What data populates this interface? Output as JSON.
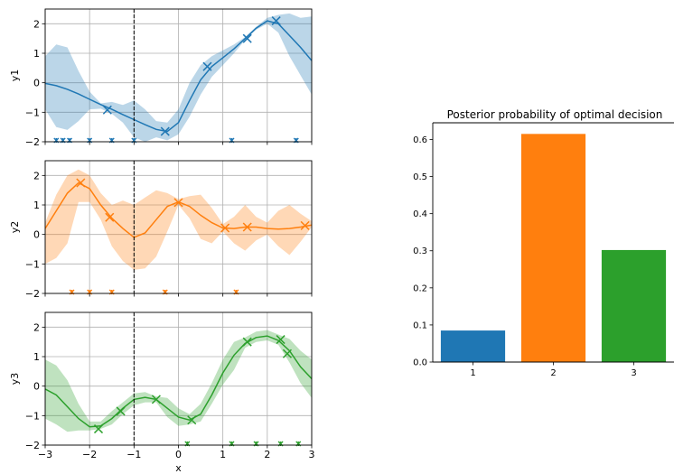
{
  "colors": {
    "blue": "#1f77b4",
    "orange": "#ff7f0e",
    "green": "#2ca02c",
    "axis": "#000000",
    "grid": "#b0b0b0"
  },
  "chart_data": [
    {
      "type": "line",
      "panel": "gp-1",
      "ylabel": "y1",
      "xlabel": "",
      "xlim": [
        -3,
        3
      ],
      "ylim": [
        -2,
        2.5
      ],
      "xticks": [
        -3,
        -2,
        -1,
        0,
        1,
        2,
        3
      ],
      "yticks": [
        -2,
        -1,
        0,
        1,
        2
      ],
      "xtick_labels": [
        "",
        "",
        "",
        "",
        "",
        "",
        ""
      ],
      "ytick_labels": [
        "−2",
        "−1",
        "0",
        "1",
        "2"
      ],
      "grid": true,
      "vline_x": -1,
      "color": "#1f77b4",
      "mean": {
        "x": [
          -3,
          -2.75,
          -2.5,
          -2.25,
          -2,
          -1.75,
          -1.5,
          -1.25,
          -1,
          -0.75,
          -0.5,
          -0.25,
          0,
          0.25,
          0.5,
          0.75,
          1,
          1.25,
          1.5,
          1.75,
          2,
          2.25,
          2.5,
          2.75,
          3
        ],
        "y": [
          -0.02,
          -0.1,
          -0.22,
          -0.38,
          -0.56,
          -0.74,
          -0.9,
          -1.08,
          -1.25,
          -1.42,
          -1.58,
          -1.65,
          -1.35,
          -0.6,
          0.1,
          0.55,
          0.85,
          1.15,
          1.5,
          1.85,
          2.1,
          2.0,
          1.6,
          1.2,
          0.75
        ]
      },
      "upper": [
        0.9,
        1.3,
        1.2,
        0.4,
        -0.3,
        -0.7,
        -0.65,
        -0.75,
        -0.6,
        -0.9,
        -1.3,
        -1.35,
        -0.9,
        0.0,
        0.6,
        0.9,
        1.1,
        1.3,
        1.55,
        1.9,
        2.2,
        2.3,
        2.35,
        2.2,
        2.25
      ],
      "lower": [
        -0.9,
        -1.5,
        -1.6,
        -1.3,
        -0.9,
        -0.88,
        -1.05,
        -1.35,
        -1.85,
        -2.0,
        -1.85,
        -1.95,
        -1.75,
        -1.15,
        -0.4,
        0.2,
        0.6,
        1.0,
        1.45,
        1.8,
        2.0,
        1.7,
        0.9,
        0.25,
        -0.4
      ],
      "observations": {
        "x": [
          -1.6,
          -0.3,
          0.65,
          1.55,
          2.2
        ],
        "y": [
          -0.92,
          -1.65,
          0.55,
          1.5,
          2.1
        ]
      },
      "rug_x": [
        -2.75,
        -2.6,
        -2.45,
        -2.0,
        -1.5,
        -1.0,
        1.2,
        2.65
      ]
    },
    {
      "type": "line",
      "panel": "gp-2",
      "ylabel": "y2",
      "xlabel": "",
      "xlim": [
        -3,
        3
      ],
      "ylim": [
        -2,
        2.5
      ],
      "xticks": [
        -3,
        -2,
        -1,
        0,
        1,
        2,
        3
      ],
      "yticks": [
        -2,
        -1,
        0,
        1,
        2
      ],
      "xtick_labels": [
        "",
        "",
        "",
        "",
        "",
        "",
        ""
      ],
      "ytick_labels": [
        "−2",
        "−1",
        "0",
        "1",
        "2"
      ],
      "grid": true,
      "vline_x": -1,
      "color": "#ff7f0e",
      "mean": {
        "x": [
          -3,
          -2.75,
          -2.5,
          -2.25,
          -2,
          -1.75,
          -1.5,
          -1.25,
          -1,
          -0.75,
          -0.5,
          -0.25,
          0,
          0.25,
          0.5,
          0.75,
          1,
          1.25,
          1.5,
          1.75,
          2,
          2.25,
          2.5,
          2.75,
          3
        ],
        "y": [
          0.2,
          0.8,
          1.4,
          1.75,
          1.55,
          1.0,
          0.55,
          0.2,
          -0.1,
          0.05,
          0.5,
          0.95,
          1.1,
          0.95,
          0.65,
          0.4,
          0.22,
          0.2,
          0.25,
          0.25,
          0.2,
          0.18,
          0.2,
          0.25,
          0.32
        ]
      },
      "upper": [
        0.4,
        1.35,
        2.0,
        2.2,
        2.0,
        1.4,
        1.0,
        1.15,
        1.0,
        1.25,
        1.5,
        1.4,
        1.2,
        1.3,
        1.35,
        0.9,
        0.35,
        0.6,
        1.0,
        0.6,
        0.4,
        0.8,
        1.0,
        0.7,
        0.45
      ],
      "lower": [
        -1.0,
        -0.8,
        -0.3,
        1.1,
        1.1,
        0.5,
        -0.4,
        -0.9,
        -1.2,
        -1.15,
        -0.75,
        0.1,
        1.0,
        0.55,
        -0.15,
        -0.3,
        0.1,
        -0.3,
        -0.55,
        -0.2,
        0.0,
        -0.4,
        -0.7,
        -0.25,
        0.25
      ],
      "observations": {
        "x": [
          -2.2,
          -1.55,
          0.0,
          1.05,
          1.55,
          2.85
        ],
        "y": [
          1.75,
          0.58,
          1.08,
          0.22,
          0.25,
          0.3
        ]
      },
      "rug_x": [
        -2.4,
        -2.0,
        -1.5,
        -0.3,
        1.3
      ]
    },
    {
      "type": "line",
      "panel": "gp-3",
      "ylabel": "y3",
      "xlabel": "x",
      "xlim": [
        -3,
        3
      ],
      "ylim": [
        -2,
        2.5
      ],
      "xticks": [
        -3,
        -2,
        -1,
        0,
        1,
        2,
        3
      ],
      "yticks": [
        -2,
        -1,
        0,
        1,
        2
      ],
      "xtick_labels": [
        "−3",
        "−2",
        "−1",
        "0",
        "1",
        "2",
        "3"
      ],
      "ytick_labels": [
        "−2",
        "−1",
        "0",
        "1",
        "2"
      ],
      "grid": true,
      "vline_x": -1,
      "color": "#2ca02c",
      "mean": {
        "x": [
          -3,
          -2.75,
          -2.5,
          -2.25,
          -2,
          -1.75,
          -1.5,
          -1.25,
          -1,
          -0.75,
          -0.5,
          -0.25,
          0,
          0.25,
          0.5,
          0.75,
          1,
          1.25,
          1.5,
          1.75,
          2,
          2.25,
          2.5,
          2.75,
          3
        ],
        "y": [
          -0.1,
          -0.3,
          -0.7,
          -1.1,
          -1.38,
          -1.35,
          -1.1,
          -0.75,
          -0.45,
          -0.38,
          -0.45,
          -0.75,
          -1.05,
          -1.15,
          -0.95,
          -0.3,
          0.45,
          1.05,
          1.45,
          1.65,
          1.7,
          1.55,
          1.2,
          0.65,
          0.25
        ]
      },
      "upper": [
        0.9,
        0.7,
        0.2,
        -0.6,
        -1.2,
        -1.2,
        -0.85,
        -0.55,
        -0.25,
        -0.2,
        -0.35,
        -0.4,
        -0.75,
        -0.95,
        -0.6,
        0.1,
        0.9,
        1.5,
        1.65,
        1.85,
        1.9,
        1.75,
        1.6,
        1.2,
        0.9
      ],
      "lower": [
        -1.1,
        -1.3,
        -1.55,
        -1.5,
        -1.5,
        -1.45,
        -1.3,
        -0.95,
        -0.65,
        -0.55,
        -0.55,
        -1.05,
        -1.35,
        -1.3,
        -1.2,
        -0.6,
        0.05,
        0.55,
        1.3,
        1.5,
        1.55,
        1.4,
        0.8,
        0.1,
        -0.4
      ],
      "observations": {
        "x": [
          -1.8,
          -1.3,
          -0.5,
          0.3,
          1.55,
          2.3,
          2.45
        ],
        "y": [
          -1.45,
          -0.85,
          -0.45,
          -1.15,
          1.5,
          1.58,
          1.1
        ]
      },
      "rug_x": [
        0.2,
        1.2,
        1.75,
        2.3,
        2.7
      ]
    },
    {
      "type": "bar",
      "panel": "posterior-bar",
      "title": "Posterior probability of optimal decision",
      "categories": [
        "1",
        "2",
        "3"
      ],
      "values": [
        0.085,
        0.615,
        0.302
      ],
      "colors": [
        "#1f77b4",
        "#ff7f0e",
        "#2ca02c"
      ],
      "ylim": [
        0,
        0.645
      ],
      "yticks": [
        0.0,
        0.1,
        0.2,
        0.3,
        0.4,
        0.5,
        0.6
      ],
      "ytick_labels": [
        "0.0",
        "0.1",
        "0.2",
        "0.3",
        "0.4",
        "0.5",
        "0.6"
      ],
      "grid": false
    }
  ]
}
